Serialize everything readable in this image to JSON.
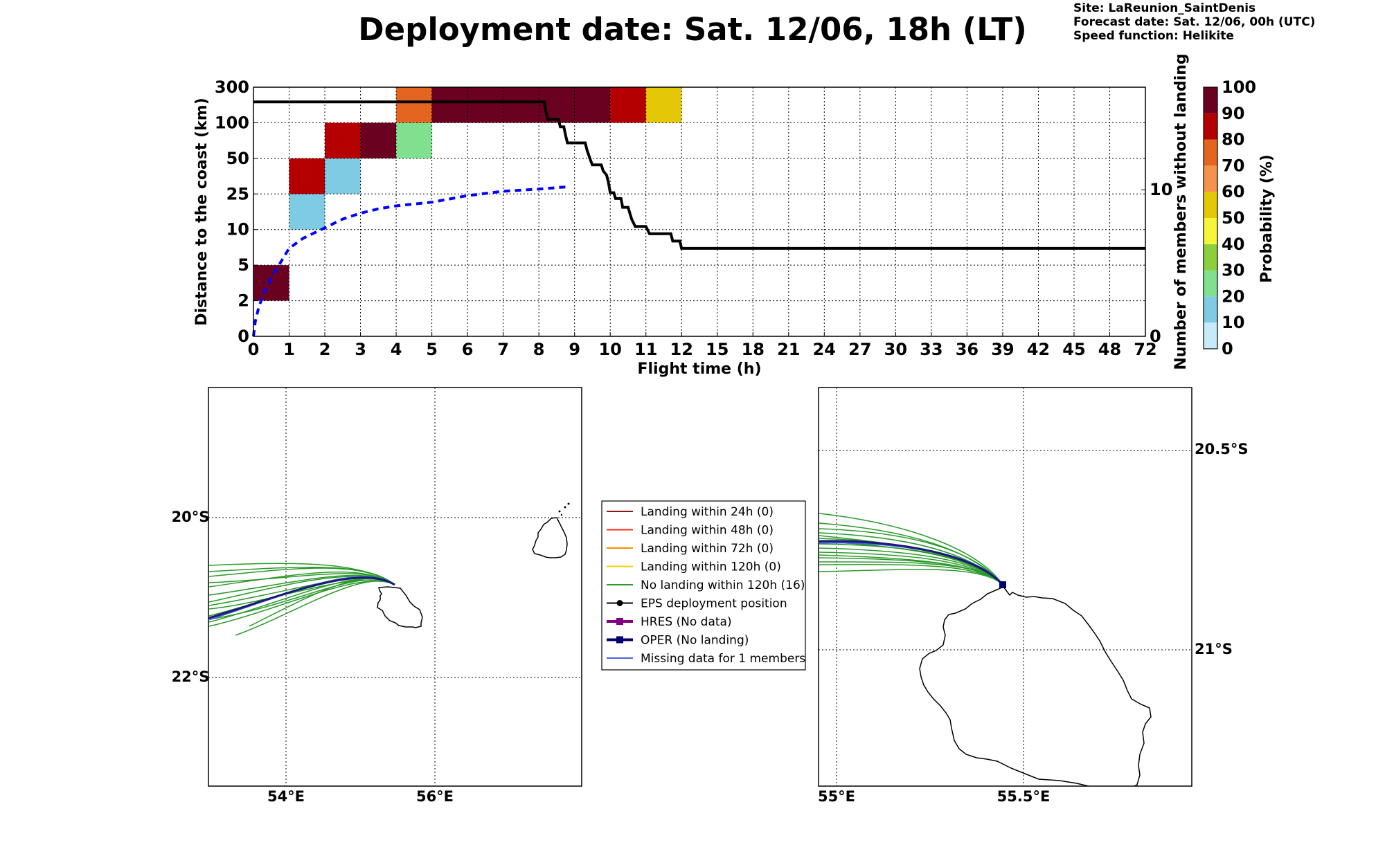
{
  "title": "Deployment date: Sat. 12/06, 18h (LT)",
  "meta": {
    "site": "Site: LaReunion_SaintDenis",
    "forecast": "Forecast date: Sat. 12/06, 00h (UTC)",
    "speed": "Speed function: Helikite"
  },
  "colors": {
    "p0_10": "#c7e9f9",
    "p10_20": "#7ecbe3",
    "p20_30": "#80e08f",
    "p30_40": "#8ccf3c",
    "p40_50": "#f7f53a",
    "p50_60": "#e4c807",
    "p60_70": "#f5924e",
    "p70_80": "#e36520",
    "p80_90": "#b40000",
    "p90_100": "#6b0120",
    "members_line": "#000000",
    "median_line": "#0000ff",
    "green": "#2a9a2a",
    "oper": "#1a1a7a",
    "missing": "#4b5fe0"
  },
  "chart_data": [
    {
      "type": "heatmap",
      "xlabel": "Flight time (h)",
      "ylabel": "Distance to the coast (km)",
      "y2label": "Number of members without landing",
      "x_tick_labels": [
        "0",
        "1",
        "2",
        "3",
        "4",
        "5",
        "6",
        "7",
        "8",
        "9",
        "10",
        "11",
        "12",
        "15",
        "18",
        "21",
        "24",
        "27",
        "30",
        "33",
        "36",
        "39",
        "42",
        "45",
        "48",
        "72"
      ],
      "y_tick_labels": [
        "0",
        "2",
        "5",
        "10",
        "25",
        "50",
        "100",
        "300"
      ],
      "y2_tick_labels": [
        "0",
        "10"
      ],
      "y2_range": [
        0,
        17
      ],
      "grid": true,
      "cells": [
        {
          "t": [
            0,
            1
          ],
          "d": [
            2,
            5
          ],
          "prob_range": "90-100"
        },
        {
          "t": [
            1,
            2
          ],
          "d": [
            10,
            25
          ],
          "prob_range": "10-20"
        },
        {
          "t": [
            1,
            2
          ],
          "d": [
            25,
            50
          ],
          "prob_range": "80-90"
        },
        {
          "t": [
            2,
            3
          ],
          "d": [
            25,
            50
          ],
          "prob_range": "10-20"
        },
        {
          "t": [
            2,
            3
          ],
          "d": [
            50,
            100
          ],
          "prob_range": "80-90"
        },
        {
          "t": [
            3,
            4
          ],
          "d": [
            50,
            100
          ],
          "prob_range": "90-100"
        },
        {
          "t": [
            4,
            5
          ],
          "d": [
            50,
            100
          ],
          "prob_range": "20-30"
        },
        {
          "t": [
            4,
            5
          ],
          "d": [
            100,
            300
          ],
          "prob_range": "70-80"
        },
        {
          "t": [
            5,
            10
          ],
          "d": [
            100,
            300
          ],
          "prob_range": "90-100"
        },
        {
          "t": [
            10,
            11
          ],
          "d": [
            100,
            300
          ],
          "prob_range": "80-90"
        },
        {
          "t": [
            11,
            12
          ],
          "d": [
            100,
            300
          ],
          "prob_range": "50-60"
        }
      ],
      "series": [
        {
          "style": "dashed-blue",
          "points": [
            [
              0,
              0
            ],
            [
              0.05,
              1
            ],
            [
              0.15,
              2
            ],
            [
              0.3,
              3
            ],
            [
              0.5,
              4
            ],
            [
              0.75,
              5
            ],
            [
              1,
              6
            ],
            [
              1.4,
              6.7
            ],
            [
              2,
              7.4
            ],
            [
              2.5,
              8
            ],
            [
              3,
              8.4
            ],
            [
              3.5,
              8.7
            ],
            [
              4,
              8.9
            ],
            [
              5,
              9.15
            ],
            [
              6,
              9.6
            ],
            [
              7,
              9.9
            ],
            [
              8,
              10.05
            ],
            [
              8.8,
              10.2
            ]
          ]
        },
        {
          "style": "solid-black",
          "points": [
            [
              0,
              16
            ],
            [
              8.15,
              16
            ],
            [
              8.2,
              15.3
            ],
            [
              8.25,
              14.8
            ],
            [
              8.55,
              14.8
            ],
            [
              8.6,
              14.3
            ],
            [
              8.7,
              14.3
            ],
            [
              8.75,
              13.7
            ],
            [
              8.8,
              13.2
            ],
            [
              9.3,
              13.2
            ],
            [
              9.35,
              12.7
            ],
            [
              9.45,
              12.0
            ],
            [
              9.5,
              11.7
            ],
            [
              9.75,
              11.7
            ],
            [
              9.8,
              11.3
            ],
            [
              9.9,
              11.0
            ],
            [
              9.95,
              10.5
            ],
            [
              10,
              9.8
            ],
            [
              10.1,
              9.8
            ],
            [
              10.15,
              9.4
            ],
            [
              10.3,
              9.4
            ],
            [
              10.35,
              8.8
            ],
            [
              10.5,
              8.8
            ],
            [
              10.6,
              8.0
            ],
            [
              10.7,
              7.5
            ],
            [
              11.0,
              7.5
            ],
            [
              11.1,
              7.0
            ],
            [
              11.7,
              7.0
            ],
            [
              11.75,
              6.5
            ],
            [
              11.95,
              6.5
            ],
            [
              12,
              6.0
            ],
            [
              72,
              6.0
            ]
          ]
        }
      ],
      "colorbar": {
        "label": "Probability (%)",
        "tick_labels": [
          "0",
          "10",
          "20",
          "30",
          "40",
          "50",
          "60",
          "70",
          "80",
          "90",
          "100"
        ]
      }
    }
  ],
  "map_left": {
    "lat_labels": [
      "20°S",
      "22°S"
    ],
    "lon_labels": [
      "54°E",
      "56°E"
    ]
  },
  "map_right": {
    "lat_labels": [
      "20.5°S",
      "21°S"
    ],
    "lon_labels": [
      "55°E",
      "55.5°E"
    ]
  },
  "legend": {
    "items": [
      {
        "label": "Landing within 24h (0)",
        "color": "#8b1a1a",
        "marker": "none"
      },
      {
        "label": "Landing within 48h (0)",
        "color": "#ff2a1a",
        "marker": "none"
      },
      {
        "label": "Landing within 72h (0)",
        "color": "#ff8c00",
        "marker": "none"
      },
      {
        "label": "Landing within 120h (0)",
        "color": "#f5d000",
        "marker": "none"
      },
      {
        "label": "No landing within 120h (16)",
        "color": "#2a9a2a",
        "marker": "none"
      },
      {
        "label": "EPS deployment position",
        "color": "#000000",
        "marker": "circle"
      },
      {
        "label": "HRES (No data)",
        "color": "#800080",
        "marker": "square"
      },
      {
        "label": "OPER (No landing)",
        "color": "#000070",
        "marker": "square"
      },
      {
        "label": "Missing data for 1 members",
        "color": "#4b5fe0",
        "marker": "none"
      }
    ]
  }
}
